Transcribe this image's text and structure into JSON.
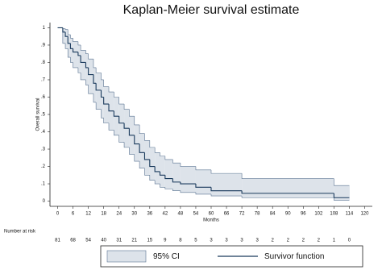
{
  "chart_data": {
    "type": "step",
    "title": "Kaplan-Meier survival estimate",
    "xlabel": "Months",
    "ylabel": "Overall survival",
    "x": [
      0,
      2,
      3,
      4,
      5,
      6,
      8,
      9,
      11,
      12,
      14,
      15,
      17,
      18,
      20,
      22,
      24,
      26,
      28,
      30,
      32,
      34,
      36,
      38,
      40,
      42,
      45,
      48,
      54,
      60,
      72,
      108,
      114
    ],
    "series": [
      {
        "name": "95% CI",
        "color": "#dde3ea",
        "edge": "#5a7391",
        "lower": [
          1,
          0.91,
          0.88,
          0.83,
          0.8,
          0.77,
          0.74,
          0.7,
          0.67,
          0.62,
          0.57,
          0.53,
          0.48,
          0.45,
          0.41,
          0.38,
          0.34,
          0.31,
          0.27,
          0.23,
          0.19,
          0.15,
          0.12,
          0.1,
          0.08,
          0.07,
          0.06,
          0.05,
          0.04,
          0.03,
          0.02,
          0.005,
          0.005
        ],
        "upper": [
          1,
          0.995,
          0.99,
          0.96,
          0.94,
          0.92,
          0.9,
          0.87,
          0.85,
          0.82,
          0.77,
          0.74,
          0.7,
          0.66,
          0.63,
          0.6,
          0.56,
          0.53,
          0.49,
          0.44,
          0.39,
          0.35,
          0.31,
          0.28,
          0.26,
          0.24,
          0.22,
          0.2,
          0.18,
          0.16,
          0.13,
          0.09,
          0.09
        ]
      },
      {
        "name": "Survivor function",
        "color": "#1a3a5c",
        "values": [
          1,
          0.975,
          0.95,
          0.91,
          0.88,
          0.86,
          0.84,
          0.8,
          0.77,
          0.73,
          0.68,
          0.64,
          0.6,
          0.56,
          0.52,
          0.49,
          0.45,
          0.42,
          0.38,
          0.33,
          0.28,
          0.24,
          0.2,
          0.17,
          0.15,
          0.13,
          0.11,
          0.1,
          0.08,
          0.06,
          0.045,
          0.02,
          0.02
        ]
      }
    ],
    "xlim": [
      -3,
      123
    ],
    "ylim": [
      -0.03,
      1.03
    ],
    "xticks": [
      0,
      6,
      12,
      18,
      24,
      30,
      36,
      42,
      48,
      54,
      60,
      66,
      72,
      78,
      84,
      90,
      96,
      102,
      108,
      114,
      120
    ],
    "yticks": [
      0,
      {
        "value": 0.1,
        "label": ".1"
      },
      {
        "value": 0.2,
        "label": ".2"
      },
      {
        "value": 0.3,
        "label": ".3"
      },
      {
        "value": 0.4,
        "label": ".4"
      },
      {
        "value": 0.5,
        "label": ".5"
      },
      {
        "value": 0.6,
        "label": ".6"
      },
      {
        "value": 0.7,
        "label": ".7"
      },
      {
        "value": 0.8,
        "label": ".8"
      },
      {
        "value": 0.9,
        "label": ".9"
      },
      1
    ],
    "at_risk_label": "Number at risk",
    "at_risk": [
      81,
      68,
      54,
      40,
      31,
      21,
      15,
      9,
      8,
      5,
      3,
      3,
      3,
      3,
      2,
      2,
      2,
      2,
      1,
      0
    ]
  }
}
